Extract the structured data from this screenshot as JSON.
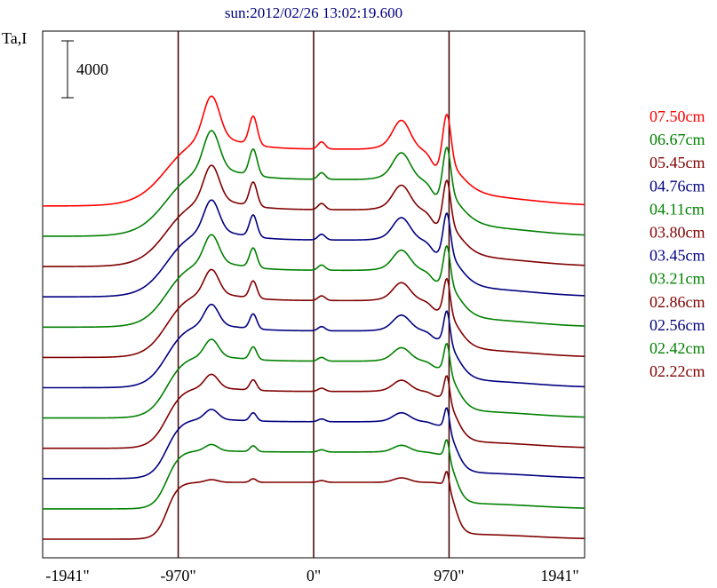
{
  "chart_data": {
    "type": "line",
    "title": "sun:2012/02/26 13:02:19.600",
    "ylabel": "Ta,I",
    "scale_bar_label": "4000",
    "x_ticks": [
      "-1941\"",
      "-970\"",
      "0\"",
      "970\"",
      "1941\""
    ],
    "x_tick_values": [
      -1941,
      -970,
      0,
      970,
      1941
    ],
    "xlim": [
      -1941,
      1941
    ],
    "vertical_lines": [
      -970,
      0,
      970
    ],
    "grid": false,
    "legend_position": "right",
    "series": [
      {
        "name": "07.50cm",
        "color": "#ff0000"
      },
      {
        "name": "06.67cm",
        "color": "#008000"
      },
      {
        "name": "05.45cm",
        "color": "#800000"
      },
      {
        "name": "04.76cm",
        "color": "#000080"
      },
      {
        "name": "04.11cm",
        "color": "#008000"
      },
      {
        "name": "03.80cm",
        "color": "#800000"
      },
      {
        "name": "03.45cm",
        "color": "#000080"
      },
      {
        "name": "03.21cm",
        "color": "#008000"
      },
      {
        "name": "02.86cm",
        "color": "#800000"
      },
      {
        "name": "02.56cm",
        "color": "#000080"
      },
      {
        "name": "02.42cm",
        "color": "#008000"
      },
      {
        "name": "02.22cm",
        "color": "#800000"
      }
    ]
  }
}
